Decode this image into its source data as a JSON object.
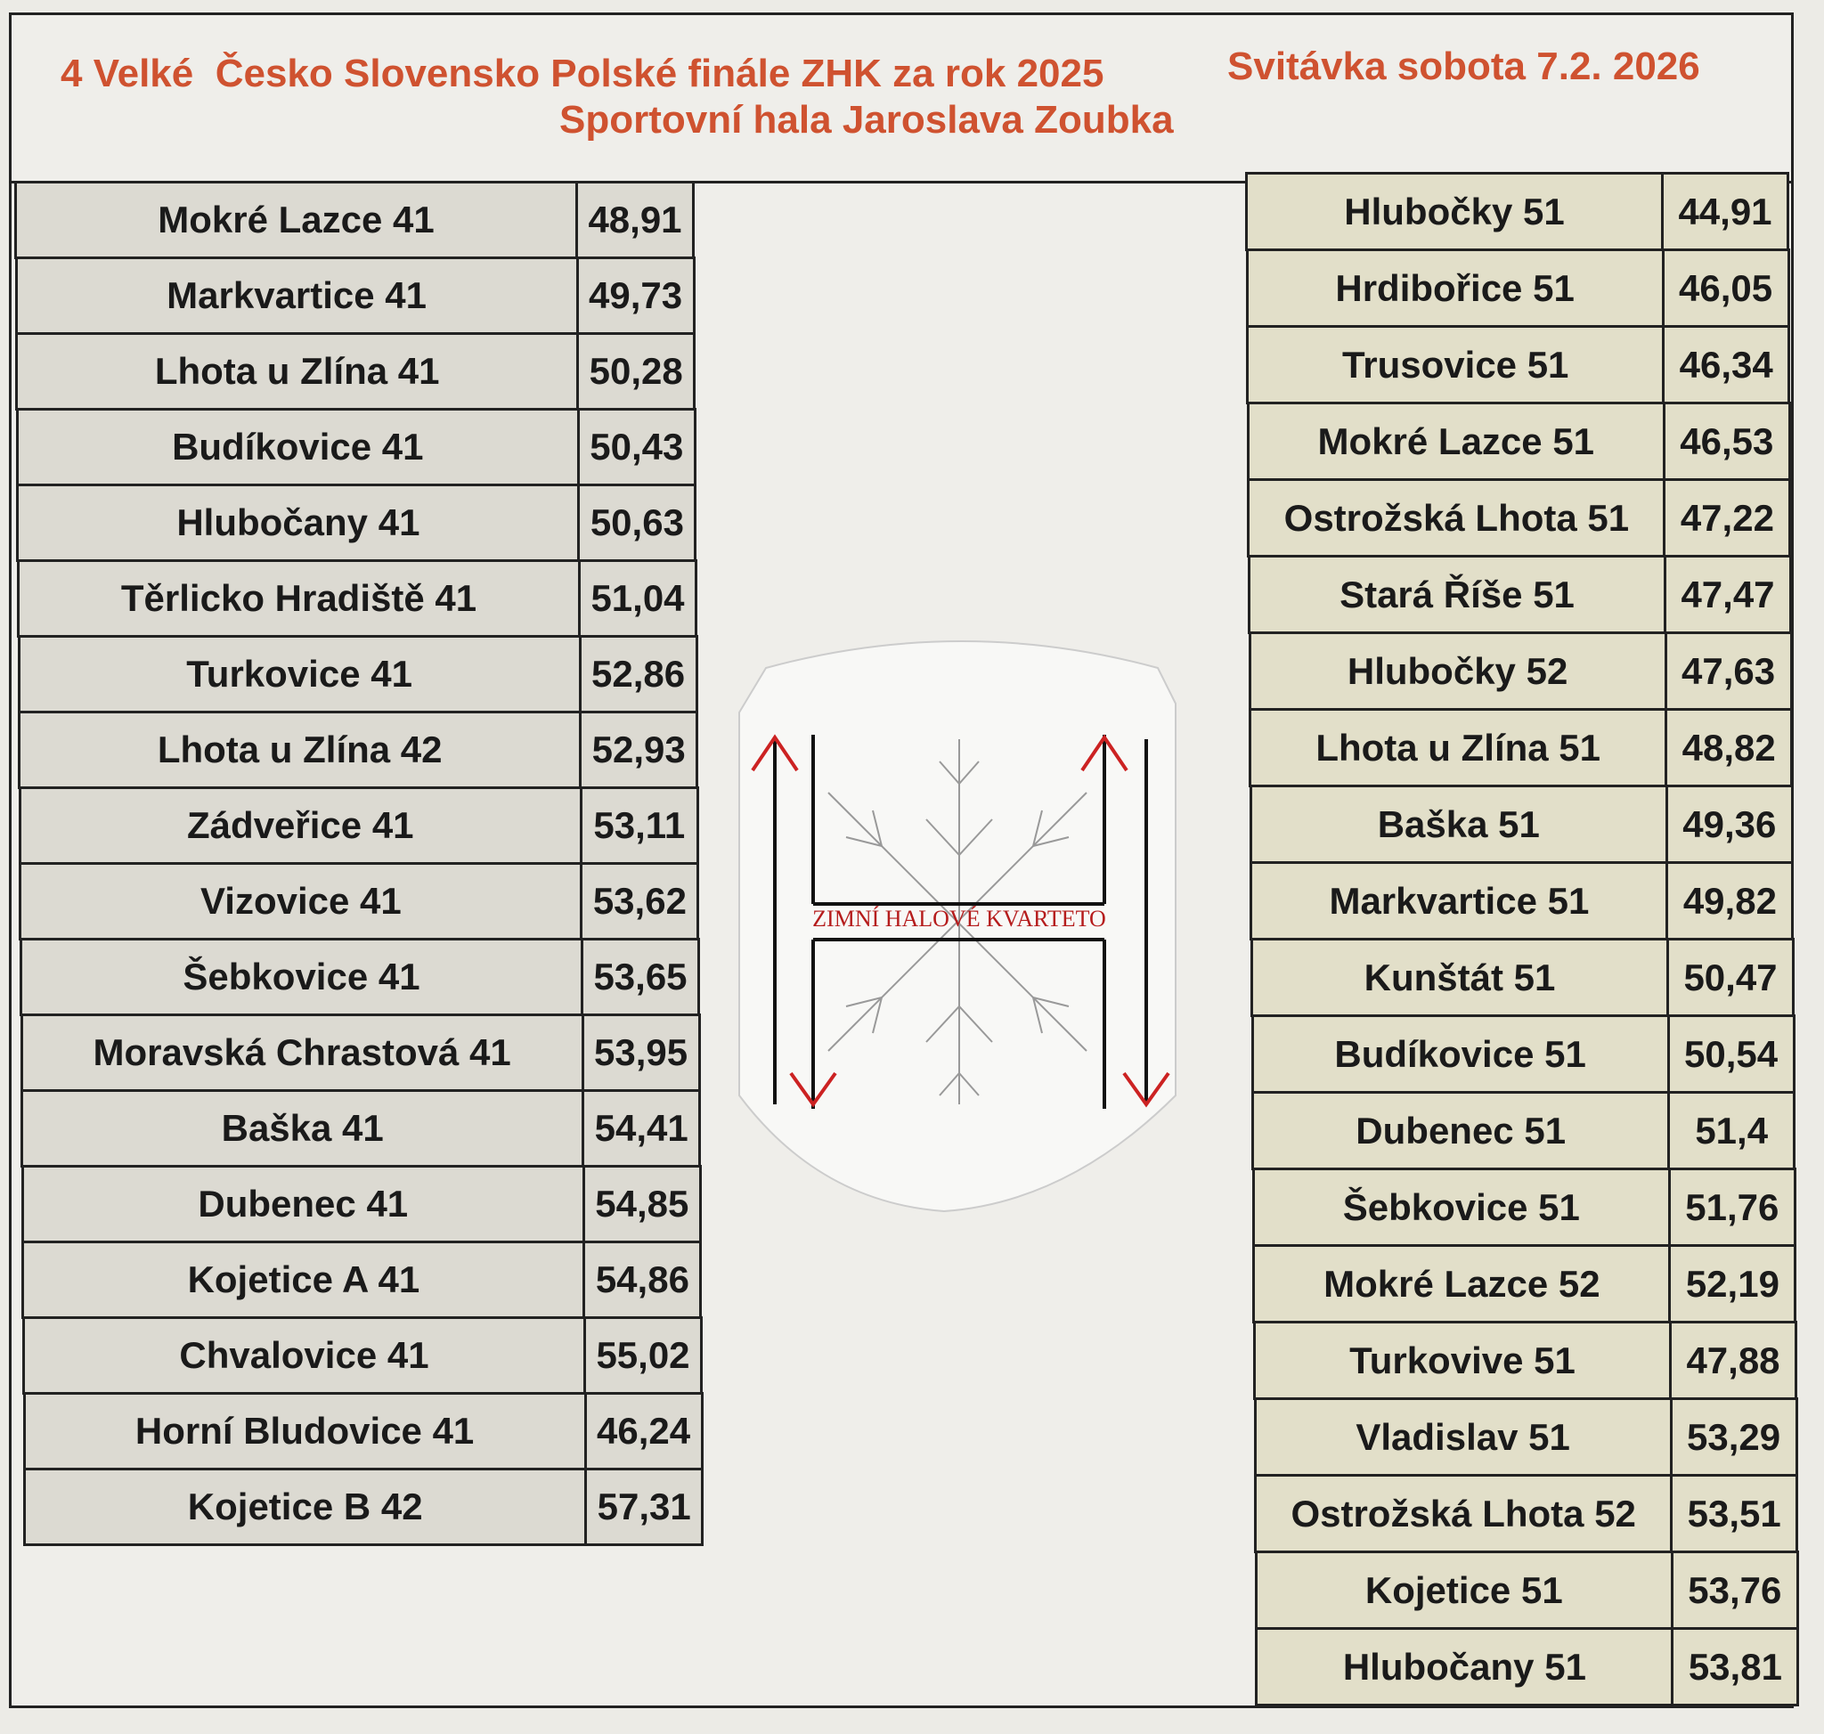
{
  "header": {
    "title": "4 Velké  Česko Slovensko Polské finále ZHK za rok 2025",
    "place_date": "Svitávka sobota 7.2. 2026",
    "venue": "Sportovní hala Jaroslava Zoubka"
  },
  "logo": {
    "text": "ZIMNÍ HALOVÉ KVARTETO"
  },
  "left_table": {
    "rows": [
      [
        "Mokré Lazce 41",
        "48,91"
      ],
      [
        "Markvartice 41",
        "49,73"
      ],
      [
        "Lhota u Zlína 41",
        "50,28"
      ],
      [
        "Budíkovice 41",
        "50,43"
      ],
      [
        "Hlubočany 41",
        "50,63"
      ],
      [
        "Těrlicko Hradiště 41",
        "51,04"
      ],
      [
        "Turkovice 41",
        "52,86"
      ],
      [
        "Lhota u Zlína 42",
        "52,93"
      ],
      [
        "Zádveřice 41",
        "53,11"
      ],
      [
        "Vizovice 41",
        "53,62"
      ],
      [
        "Šebkovice 41",
        "53,65"
      ],
      [
        "Moravská Chrastová 41",
        "53,95"
      ],
      [
        "Baška 41",
        "54,41"
      ],
      [
        "Dubenec 41",
        "54,85"
      ],
      [
        "Kojetice A 41",
        "54,86"
      ],
      [
        "Chvalovice 41",
        "55,02"
      ],
      [
        "Horní Bludovice 41",
        "46,24"
      ],
      [
        "Kojetice B 42",
        "57,31"
      ]
    ]
  },
  "right_table": {
    "rows": [
      [
        "Hlubočky 51",
        "44,91"
      ],
      [
        "Hrdibořice 51",
        "46,05"
      ],
      [
        "Trusovice 51",
        "46,34"
      ],
      [
        "Mokré Lazce 51",
        "46,53"
      ],
      [
        "Ostrožská Lhota 51",
        "47,22"
      ],
      [
        "Stará Říše 51",
        "47,47"
      ],
      [
        "Hlubočky 52",
        "47,63"
      ],
      [
        "Lhota u Zlína 51",
        "48,82"
      ],
      [
        "Baška 51",
        "49,36"
      ],
      [
        "Markvartice 51",
        "49,82"
      ],
      [
        "Kunštát 51",
        "50,47"
      ],
      [
        "Budíkovice 51",
        "50,54"
      ],
      [
        "Dubenec 51",
        "51,4"
      ],
      [
        "Šebkovice 51",
        "51,76"
      ],
      [
        "Mokré Lazce 52",
        "52,19"
      ],
      [
        "Turkovive 51",
        "47,88"
      ],
      [
        "Vladislav 51",
        "53,29"
      ],
      [
        "Ostrožská Lhota 52",
        "53,51"
      ],
      [
        "Kojetice 51",
        "53,76"
      ],
      [
        "Hlubočany 51",
        "53,81"
      ]
    ]
  }
}
